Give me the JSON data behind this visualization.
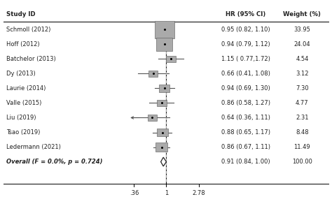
{
  "studies": [
    {
      "label": "Schmoll (2012)",
      "hr": 0.95,
      "ci_lo": 0.82,
      "ci_hi": 1.1,
      "weight": 33.95,
      "text": "0.95 (0.82, 1.10)",
      "wt_text": "33.95",
      "is_overall": false,
      "clipped_lo": false
    },
    {
      "label": "Hoff (2012)",
      "hr": 0.94,
      "ci_lo": 0.79,
      "ci_hi": 1.12,
      "weight": 24.04,
      "text": "0.94 (0.79, 1.12)",
      "wt_text": "24.04",
      "is_overall": false,
      "clipped_lo": false
    },
    {
      "label": "Batchelor (2013)",
      "hr": 1.15,
      "ci_lo": 0.77,
      "ci_hi": 1.72,
      "weight": 4.54,
      "text": "1.15 ( 0.77,1.72)",
      "wt_text": "4.54",
      "is_overall": false,
      "clipped_lo": false
    },
    {
      "label": "Dy (2013)",
      "hr": 0.66,
      "ci_lo": 0.41,
      "ci_hi": 1.08,
      "weight": 3.12,
      "text": "0.66 (0.41, 1.08)",
      "wt_text": "3.12",
      "is_overall": false,
      "clipped_lo": false
    },
    {
      "label": "Laurie (2014)",
      "hr": 0.94,
      "ci_lo": 0.69,
      "ci_hi": 1.3,
      "weight": 7.3,
      "text": "0.94 (0.69, 1.30)",
      "wt_text": "7.30",
      "is_overall": false,
      "clipped_lo": false
    },
    {
      "label": "Valle (2015)",
      "hr": 0.86,
      "ci_lo": 0.58,
      "ci_hi": 1.27,
      "weight": 4.77,
      "text": "0.86 (0.58, 1.27)",
      "wt_text": "4.77",
      "is_overall": false,
      "clipped_lo": false
    },
    {
      "label": "Liu (2019)",
      "hr": 0.64,
      "ci_lo": 0.36,
      "ci_hi": 1.11,
      "weight": 2.31,
      "text": "0.64 (0.36, 1.11)",
      "wt_text": "2.31",
      "is_overall": false,
      "clipped_lo": true
    },
    {
      "label": "Tsao (2019)",
      "hr": 0.88,
      "ci_lo": 0.65,
      "ci_hi": 1.17,
      "weight": 8.48,
      "text": "0.88 (0.65, 1.17)",
      "wt_text": "8.48",
      "is_overall": false,
      "clipped_lo": false
    },
    {
      "label": "Ledermann (2021)",
      "hr": 0.86,
      "ci_lo": 0.67,
      "ci_hi": 1.11,
      "weight": 11.49,
      "text": "0.86 (0.67, 1.11)",
      "wt_text": "11.49",
      "is_overall": false,
      "clipped_lo": false
    },
    {
      "label": "Overall (F = 0.0%, p = 0.724)",
      "hr": 0.91,
      "ci_lo": 0.84,
      "ci_hi": 1.0,
      "weight": 100.0,
      "text": "0.91 (0.84, 1.00)",
      "wt_text": "100.00",
      "is_overall": true,
      "clipped_lo": false
    }
  ],
  "xmin": 0.28,
  "xmax": 3.5,
  "x_ticks": [
    0.36,
    1.0,
    2.78
  ],
  "x_tick_labels": [
    ".36",
    "1",
    "2.78"
  ],
  "header_hr": "HR (95% CI)",
  "header_wt": "Weight (%)",
  "header_study": "Study ID",
  "bg_color": "#ffffff",
  "text_color": "#222222",
  "box_color": "#aaaaaa",
  "overall_color": "#ffffff",
  "overall_edge": "#222222",
  "line_color": "#555555",
  "dashed_color": "#aaaaaa",
  "fontsize": 6.0,
  "max_weight": 33.95,
  "arrow_lo": 0.3
}
